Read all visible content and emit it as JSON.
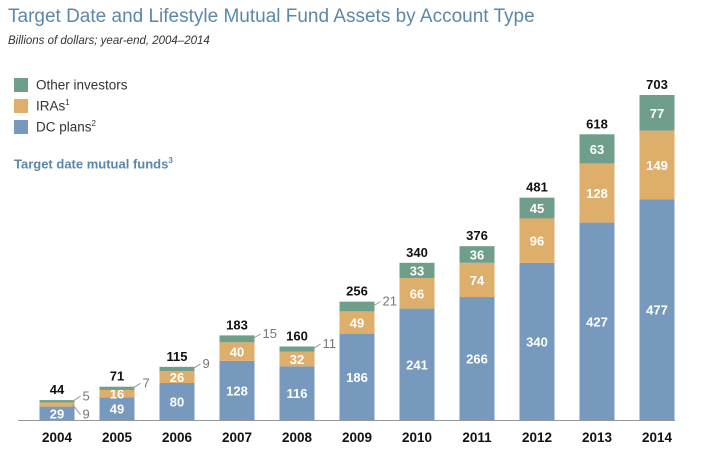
{
  "header": {
    "title": "Target Date and Lifestyle Mutual Fund Assets by Account Type",
    "subtitle": "Billions of dollars; year-end, 2004–2014",
    "panel_title": "Target date mutual funds",
    "panel_title_note": "3"
  },
  "legend": [
    {
      "label": "Other investors",
      "note": "",
      "color": "#6f9f8b"
    },
    {
      "label": "IRAs",
      "note": "1",
      "color": "#deae6b"
    },
    {
      "label": "DC plans",
      "note": "2",
      "color": "#7699bd"
    }
  ],
  "chart_data": {
    "type": "bar",
    "stacked": true,
    "title": "Target Date and Lifestyle Mutual Fund Assets by Account Type",
    "subtitle": "Billions of dollars; year-end, 2004–2014",
    "categories": [
      "2004",
      "2005",
      "2006",
      "2007",
      "2008",
      "2009",
      "2010",
      "2011",
      "2012",
      "2013",
      "2014"
    ],
    "series": [
      {
        "name": "DC plans",
        "color": "#7699bd",
        "values": [
          29,
          49,
          80,
          128,
          116,
          186,
          241,
          266,
          340,
          427,
          477
        ]
      },
      {
        "name": "IRAs",
        "color": "#deae6b",
        "values": [
          9,
          16,
          26,
          40,
          32,
          49,
          66,
          74,
          96,
          128,
          149
        ]
      },
      {
        "name": "Other investors",
        "color": "#6f9f8b",
        "values": [
          5,
          7,
          9,
          15,
          11,
          21,
          33,
          36,
          45,
          63,
          77
        ]
      }
    ],
    "totals": [
      44,
      71,
      115,
      183,
      160,
      256,
      340,
      376,
      481,
      618,
      703
    ],
    "outside_labels": {
      "2004": [
        "IRAs",
        "Other investors"
      ],
      "2005": [
        "Other investors"
      ],
      "2006": [
        "Other investors"
      ],
      "2007": [
        "Other investors"
      ],
      "2008": [
        "Other investors"
      ],
      "2009": [
        "Other investors"
      ]
    },
    "ylim": [
      0,
      703
    ],
    "grid": false,
    "legend_position": "top-left"
  }
}
